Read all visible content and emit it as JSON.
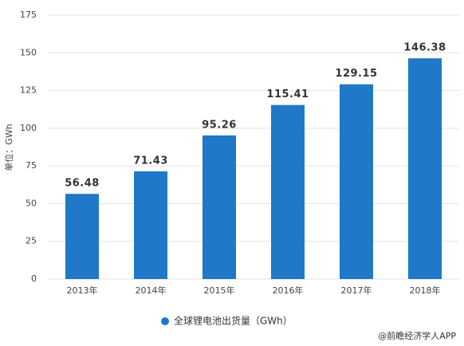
{
  "chart_data": {
    "type": "bar",
    "y_label": "单位：GWh",
    "categories": [
      "2013年",
      "2014年",
      "2015年",
      "2016年",
      "2017年",
      "2018年"
    ],
    "series": [
      {
        "name": "全球锂电池出货量（GWh）",
        "color": "#1f78c8",
        "values": [
          56.48,
          71.43,
          95.26,
          115.41,
          129.15,
          146.38
        ]
      }
    ],
    "ylim": [
      0,
      175
    ],
    "yticks": [
      0,
      25,
      50,
      75,
      100,
      125,
      150,
      175
    ],
    "grid": true,
    "source": "@前瞻经济学人APP"
  }
}
